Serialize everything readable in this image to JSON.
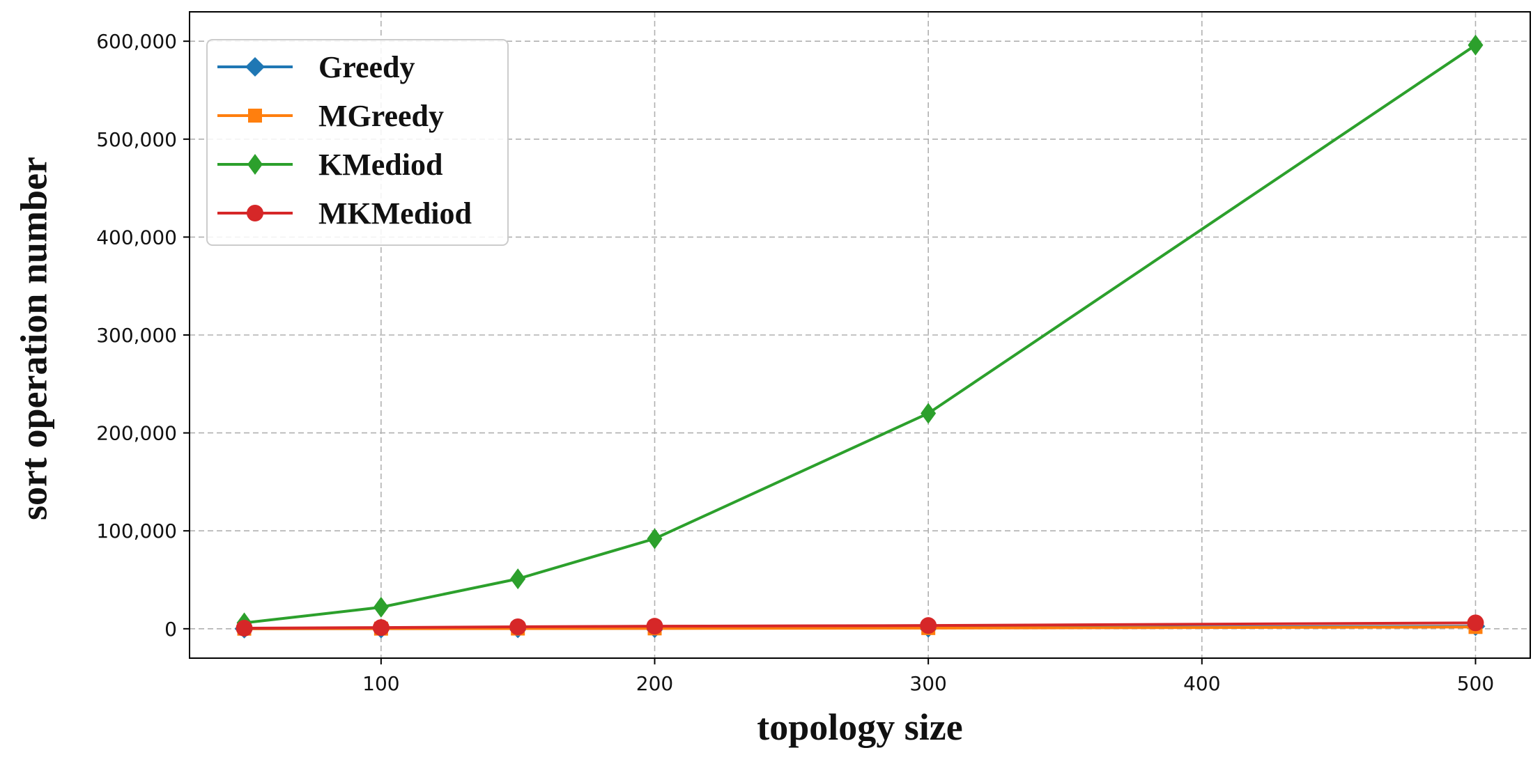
{
  "chart_data": {
    "type": "line",
    "title": "",
    "xlabel": "topology size",
    "ylabel": "sort operation number",
    "x": [
      50,
      100,
      150,
      200,
      300,
      500
    ],
    "xlim": [
      30,
      520
    ],
    "ylim": [
      -30000,
      630000
    ],
    "xticks": [
      100,
      200,
      300,
      400,
      500
    ],
    "xtick_labels": [
      "100",
      "200",
      "300",
      "400",
      "500"
    ],
    "yticks": [
      0,
      100000,
      200000,
      300000,
      400000,
      500000,
      600000
    ],
    "ytick_labels": [
      "0",
      "100,000",
      "200,000",
      "300,000",
      "400,000",
      "500,000",
      "600,000"
    ],
    "grid": true,
    "legend_position": "top-left",
    "series": [
      {
        "name": "Greedy",
        "marker": "diamond",
        "color": "#1f77b4",
        "values": [
          60,
          150,
          280,
          450,
          900,
          2500
        ]
      },
      {
        "name": "MGreedy",
        "marker": "square",
        "color": "#ff7f0e",
        "values": [
          50,
          120,
          220,
          350,
          700,
          1800
        ]
      },
      {
        "name": "KMediod",
        "marker": "thin_diamond",
        "color": "#2ca02c",
        "values": [
          6000,
          22000,
          51000,
          92000,
          220000,
          596000
        ]
      },
      {
        "name": "MKMediod",
        "marker": "circle",
        "color": "#d62728",
        "values": [
          600,
          1200,
          2000,
          2600,
          3300,
          6000
        ]
      }
    ]
  }
}
